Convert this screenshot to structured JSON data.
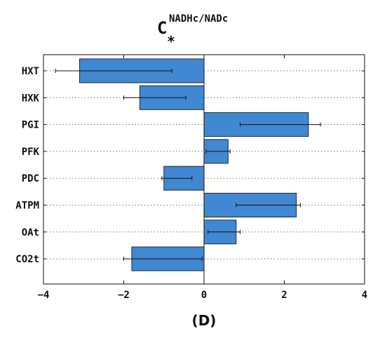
{
  "chart_data": {
    "type": "bar",
    "orientation": "horizontal",
    "title": {
      "main": "C",
      "superscript": "NADHc/NADc",
      "subscript": "*"
    },
    "caption": "(D)",
    "xlabel": "",
    "ylabel": "",
    "xlim": [
      -4,
      4
    ],
    "xticks": [
      -4,
      -2,
      0,
      2,
      4
    ],
    "xtick_labels": [
      "−4",
      "−2",
      "0",
      "2",
      "4"
    ],
    "grid": "horizontal dotted lines at each category",
    "bar_color": "#4188d2",
    "categories": [
      "HXT",
      "HXK",
      "PGI",
      "PFK",
      "PDC",
      "ATPM",
      "OAt",
      "CO2t"
    ],
    "values": [
      -3.1,
      -1.6,
      2.6,
      0.6,
      -1.0,
      2.3,
      0.8,
      -1.8
    ],
    "error_low": [
      -3.7,
      -2.0,
      0.9,
      0.05,
      -1.05,
      0.8,
      0.1,
      -2.0
    ],
    "error_high": [
      -0.8,
      -0.45,
      2.9,
      0.65,
      -0.3,
      2.4,
      0.9,
      -0.05
    ]
  }
}
